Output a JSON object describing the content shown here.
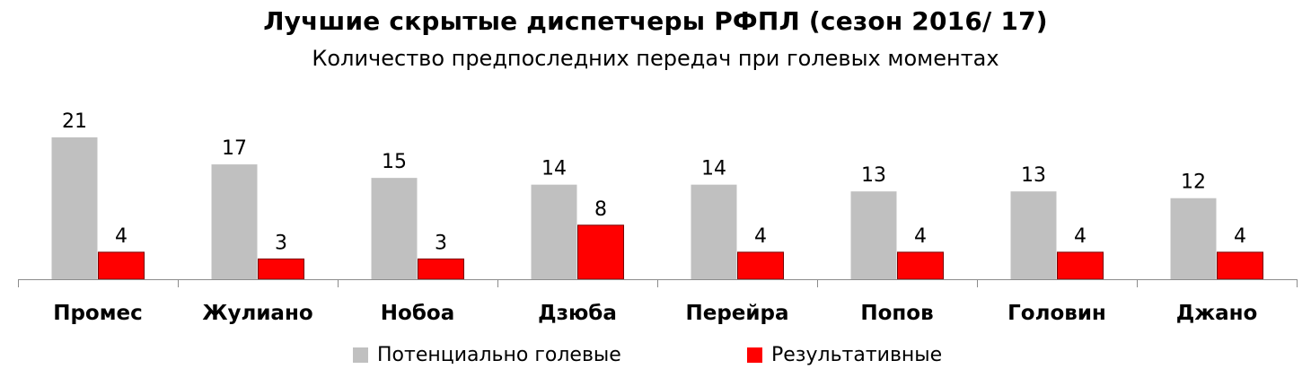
{
  "chart_data": {
    "type": "bar",
    "title": "Лучшие скрытые диспетчеры РФПЛ (сезон 2016/ 17)",
    "subtitle": "Количество предпоследних передач при голевых моментах",
    "categories": [
      "Промес",
      "Жулиано",
      "Нобоа",
      "Дзюба",
      "Перейра",
      "Попов",
      "Головин",
      "Джано"
    ],
    "series": [
      {
        "name": "Потенциально голевые",
        "color": "#c0c0c0",
        "values": [
          21,
          17,
          15,
          14,
          14,
          13,
          13,
          12
        ]
      },
      {
        "name": "Результативные",
        "color": "#ff0000",
        "values": [
          4,
          3,
          3,
          8,
          4,
          4,
          4,
          4
        ]
      }
    ],
    "ylim": [
      0,
      21
    ],
    "grid": false,
    "data_labels": true,
    "legend": "bottom"
  }
}
